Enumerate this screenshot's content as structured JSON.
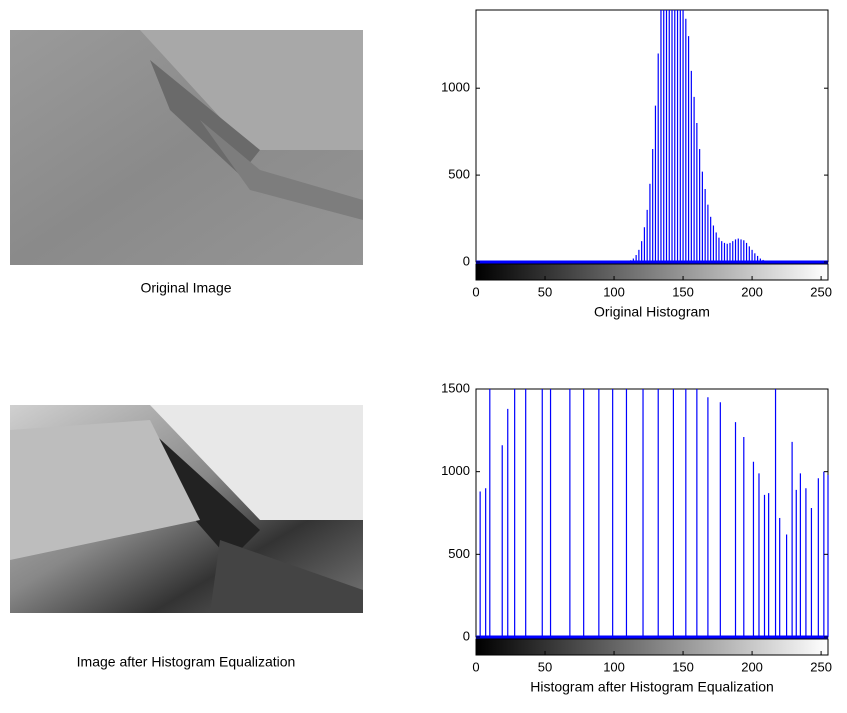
{
  "images": [
    {
      "caption": "Original Image"
    },
    {
      "caption": "Image after Histogram Equalization"
    }
  ],
  "chart_data": [
    {
      "type": "stem",
      "xlabel": "Original Histogram",
      "color": "#0000ff",
      "x": [
        110,
        112,
        114,
        116,
        118,
        120,
        122,
        124,
        126,
        128,
        130,
        132,
        134,
        136,
        138,
        140,
        142,
        144,
        146,
        148,
        150,
        152,
        154,
        156,
        158,
        160,
        162,
        164,
        166,
        168,
        170,
        172,
        174,
        176,
        178,
        180,
        182,
        184,
        186,
        188,
        190,
        192,
        194,
        196,
        198,
        200,
        202,
        204,
        206,
        208,
        210,
        212,
        214
      ],
      "values": [
        5,
        10,
        20,
        40,
        70,
        120,
        200,
        300,
        450,
        650,
        900,
        1200,
        1450,
        1450,
        1450,
        1450,
        1450,
        1450,
        1450,
        1450,
        1450,
        1400,
        1300,
        1100,
        950,
        800,
        650,
        520,
        420,
        330,
        260,
        210,
        170,
        140,
        120,
        110,
        105,
        110,
        120,
        130,
        135,
        130,
        125,
        110,
        90,
        70,
        50,
        35,
        20,
        12,
        8,
        5,
        3
      ],
      "xlim": [
        0,
        255
      ],
      "ylim": [
        0,
        1450
      ],
      "xticks": [
        0,
        50,
        100,
        150,
        200,
        250
      ],
      "yticks": [
        0,
        500,
        1000
      ]
    },
    {
      "type": "stem",
      "xlabel": "Histogram after Histogram Equalization",
      "color": "#0000ff",
      "x": [
        3,
        7,
        10,
        19,
        23,
        28,
        36,
        48,
        54,
        68,
        78,
        89,
        99,
        109,
        121,
        132,
        143,
        152,
        160,
        168,
        177,
        188,
        194,
        201,
        205,
        209,
        212,
        217,
        220,
        225,
        229,
        232,
        235,
        239,
        243,
        248,
        252,
        255
      ],
      "values": [
        880,
        900,
        1500,
        1160,
        1380,
        1500,
        1500,
        1500,
        1500,
        1500,
        1500,
        1500,
        1500,
        1500,
        1500,
        1500,
        1500,
        1500,
        1500,
        1450,
        1420,
        1300,
        1210,
        1060,
        990,
        860,
        870,
        1500,
        720,
        620,
        1180,
        890,
        990,
        900,
        780,
        960,
        1000,
        980
      ],
      "xlim": [
        0,
        255
      ],
      "ylim": [
        0,
        1500
      ],
      "xticks": [
        0,
        50,
        100,
        150,
        200,
        250
      ],
      "yticks": [
        0,
        500,
        1000,
        1500
      ]
    }
  ]
}
